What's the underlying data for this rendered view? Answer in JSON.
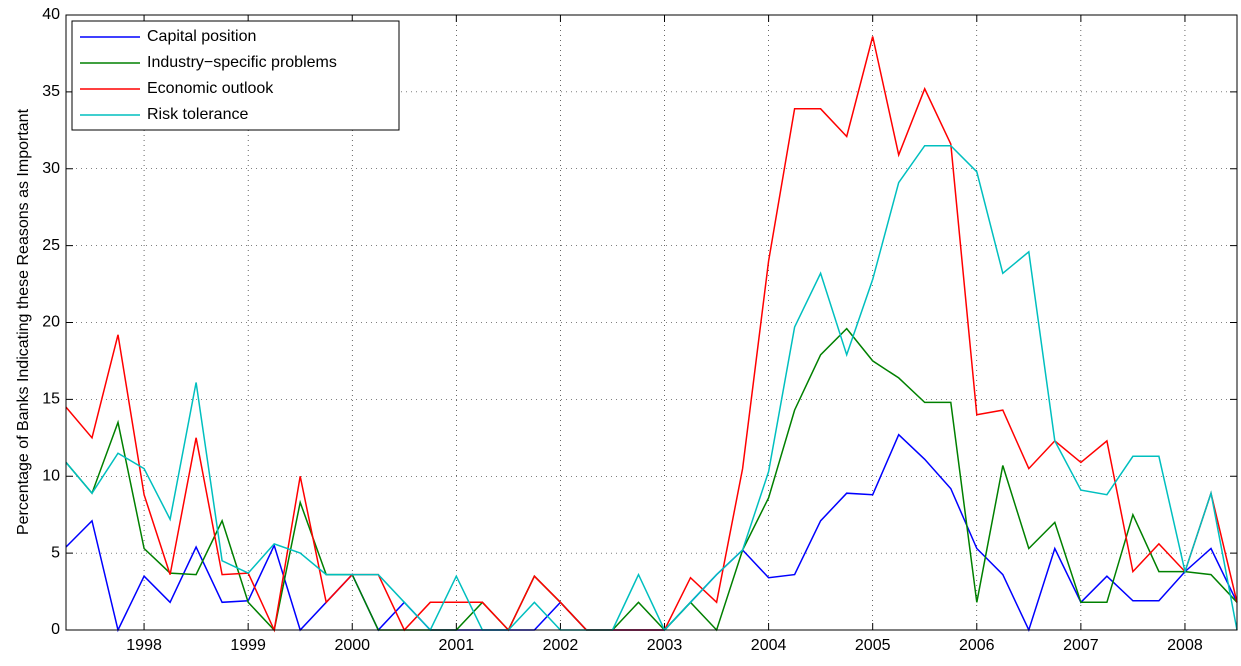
{
  "chart_data": {
    "type": "line",
    "y_label": "Percentage of Banks Indicating these Reasons as Important",
    "x": [
      1997.25,
      1997.5,
      1997.75,
      1998,
      1998.25,
      1998.5,
      1998.75,
      1999,
      1999.25,
      1999.5,
      1999.75,
      2000,
      2000.25,
      2000.5,
      2000.75,
      2001,
      2001.25,
      2001.5,
      2001.75,
      2002,
      2002.25,
      2002.5,
      2002.75,
      2003,
      2003.25,
      2003.5,
      2003.75,
      2004,
      2004.25,
      2004.5,
      2004.75,
      2005,
      2005.25,
      2005.5,
      2005.75,
      2006,
      2006.25,
      2006.5,
      2006.75,
      2007,
      2007.25,
      2007.5,
      2007.75,
      2008,
      2008.25,
      2008.5
    ],
    "series": [
      {
        "name": "Capital position",
        "color": "#0000ff",
        "values": [
          5.4,
          7.1,
          0,
          3.5,
          1.8,
          5.4,
          1.8,
          1.9,
          5.5,
          0,
          1.8,
          3.6,
          0,
          1.8,
          0,
          0,
          0,
          0,
          0,
          1.8,
          0,
          0,
          0,
          0,
          1.8,
          3.6,
          5.2,
          3.4,
          3.6,
          7.1,
          8.9,
          8.8,
          12.7,
          11.1,
          9.2,
          5.3,
          3.6,
          0,
          5.3,
          1.8,
          3.5,
          1.9,
          1.9,
          3.8,
          5.3,
          1.8
        ]
      },
      {
        "name": "Industry−specific problems",
        "color": "#008000",
        "values": [
          10.9,
          8.9,
          13.5,
          5.3,
          3.7,
          3.6,
          7.1,
          1.8,
          0,
          8.3,
          3.6,
          3.6,
          0,
          0,
          0,
          0,
          1.8,
          0,
          3.5,
          1.8,
          0,
          0,
          1.8,
          0,
          1.8,
          0,
          5.2,
          8.6,
          14.3,
          17.9,
          19.6,
          17.5,
          16.4,
          14.8,
          14.8,
          1.8,
          10.7,
          5.3,
          7.0,
          1.8,
          1.8,
          7.5,
          3.8,
          3.8,
          3.6,
          1.8
        ]
      },
      {
        "name": "Economic outlook",
        "color": "#ff0000",
        "values": [
          14.5,
          12.5,
          19.2,
          8.8,
          3.6,
          12.5,
          3.6,
          3.7,
          0,
          10,
          1.8,
          3.6,
          3.6,
          0,
          1.8,
          1.8,
          1.8,
          0,
          3.5,
          1.8,
          0,
          0,
          0,
          0,
          3.4,
          1.8,
          10.5,
          24,
          33.9,
          33.9,
          32.1,
          38.6,
          30.9,
          35.2,
          31.6,
          14,
          14.3,
          10.5,
          12.3,
          10.9,
          12.3,
          3.8,
          5.6,
          3.8,
          8.9,
          1.8
        ]
      },
      {
        "name": "Risk tolerance",
        "color": "#00bfbf",
        "values": [
          10.9,
          8.9,
          11.5,
          10.5,
          7.2,
          16.1,
          4.5,
          3.7,
          5.6,
          5.0,
          3.6,
          3.6,
          3.6,
          1.8,
          0,
          3.5,
          0,
          0,
          1.8,
          0,
          0,
          0,
          3.6,
          0,
          1.8,
          3.6,
          5.2,
          10.3,
          19.7,
          23.2,
          17.9,
          22.8,
          29.1,
          31.5,
          31.5,
          29.8,
          23.2,
          24.6,
          12.3,
          9.1,
          8.8,
          11.3,
          11.3,
          3.8,
          8.9,
          0
        ]
      }
    ],
    "xlim": [
      1997.25,
      2008.5
    ],
    "xticks": [
      1998,
      1999,
      2000,
      2001,
      2002,
      2003,
      2004,
      2005,
      2006,
      2007,
      2008
    ],
    "ylim": [
      0,
      40
    ],
    "yticks": [
      0,
      5,
      10,
      15,
      20,
      25,
      30,
      35,
      40
    ],
    "grid": true,
    "legend": "upper-left"
  }
}
